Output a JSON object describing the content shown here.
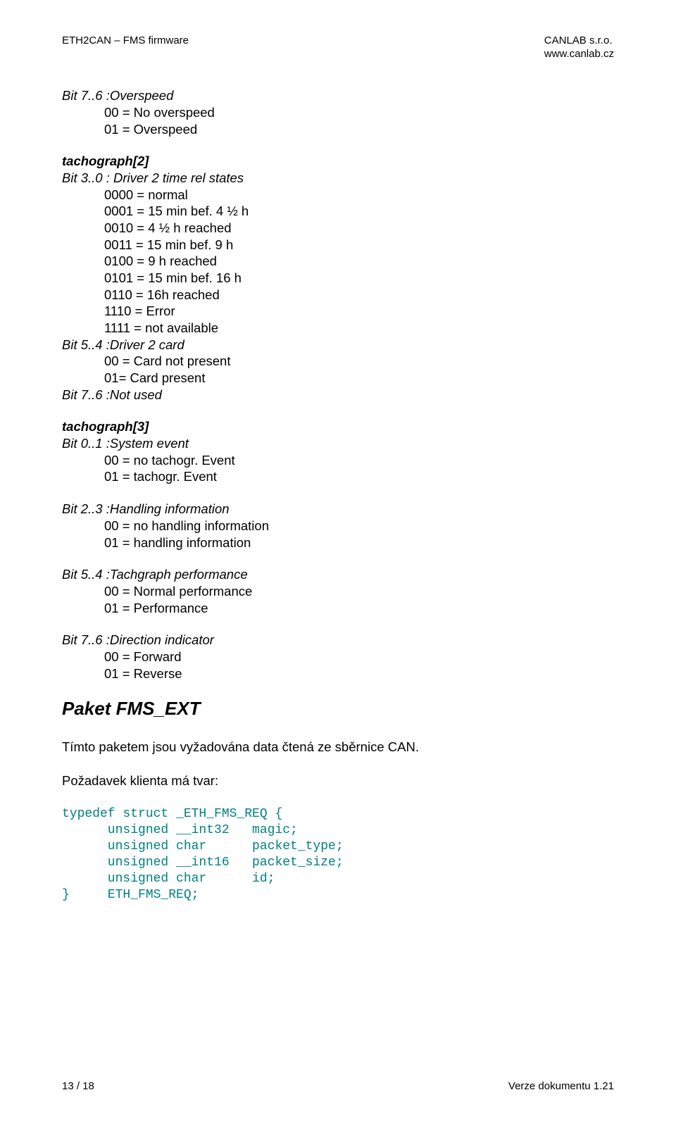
{
  "header": {
    "left": "ETH2CAN – FMS firmware",
    "right1": "CANLAB s.r.o.",
    "right2": "www.canlab.cz"
  },
  "bit76_overspeed": {
    "label": "Bit  7..6 :Overspeed",
    "v0": "00 = No overspeed",
    "v1": "01 = Overspeed"
  },
  "tacho2": {
    "title": "tachograph[2]",
    "bit30": {
      "label": "Bit  3..0 : Driver 2 time rel states",
      "l1": "0000 = normal",
      "l2": "0001 = 15 min bef. 4 ½ h",
      "l3": "0010 = 4 ½ h reached",
      "l4": "0011 = 15 min bef. 9 h",
      "l5": "0100 = 9 h reached",
      "l6": "0101 = 15 min bef. 16 h",
      "l7": "0110 = 16h reached",
      "l8": "1110 = Error",
      "l9": "1111 = not available"
    },
    "bit54": {
      "label": "Bit  5..4 :Driver 2 card",
      "l1": "00 = Card not present",
      "l2": "01= Card present"
    },
    "bit76": {
      "label": "Bit  7..6 :Not used"
    }
  },
  "tacho3": {
    "title": "tachograph[3]",
    "bit01": {
      "label": "Bit  0..1 :System event",
      "l1": "00 = no tachogr. Event",
      "l2": "01 = tachogr. Event"
    },
    "bit23": {
      "label": "Bit  2..3 :Handling information",
      "l1": "00 = no handling information",
      "l2": "01 = handling information"
    },
    "bit54": {
      "label": "Bit  5..4 :Tachgraph performance",
      "l1": "00 = Normal performance",
      "l2": "01 = Performance"
    },
    "bit76": {
      "label": "Bit  7..6 :Direction indicator",
      "l1": "00 = Forward",
      "l2": "01 = Reverse"
    }
  },
  "packet": {
    "heading": "Paket FMS_EXT",
    "para1": "Tímto paketem jsou vyžadována data čtená ze sběrnice CAN.",
    "para2": "Požadavek klienta má tvar:",
    "code": "typedef struct _ETH_FMS_REQ {\n      unsigned __int32   magic;\n      unsigned char      packet_type;\n      unsigned __int16   packet_size;\n      unsigned char      id;\n}     ETH_FMS_REQ;"
  },
  "footer": {
    "left": "13 / 18",
    "right": "Verze dokumentu 1.21"
  }
}
